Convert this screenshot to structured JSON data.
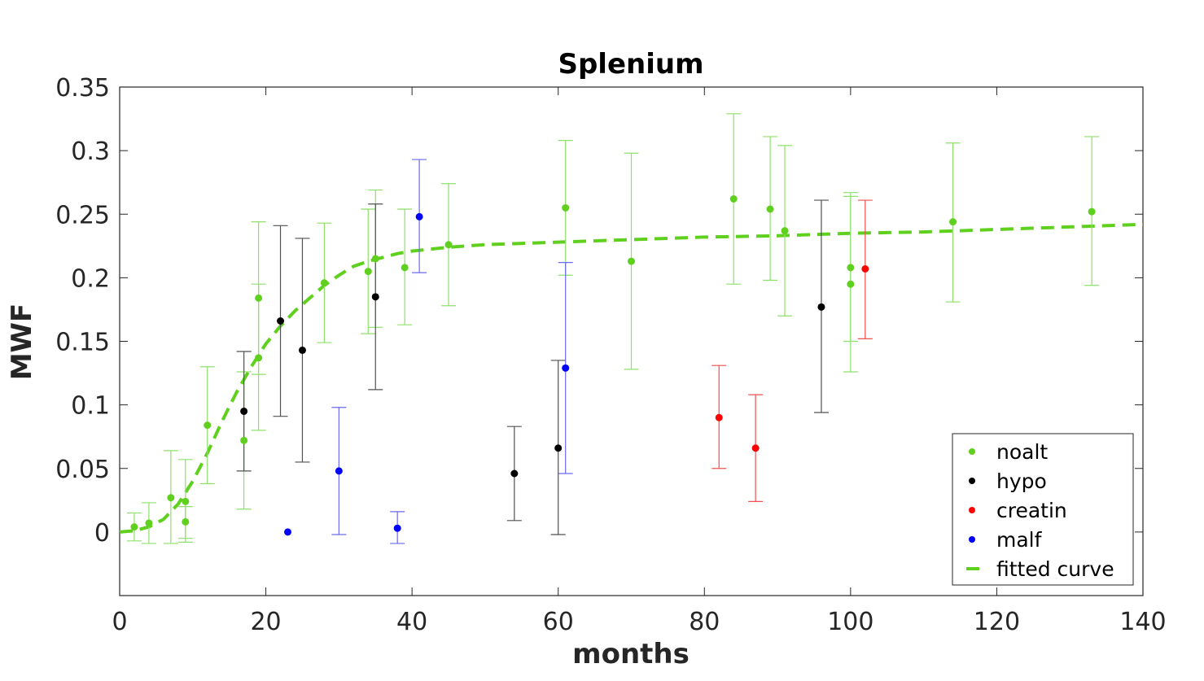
{
  "chart_data": {
    "type": "scatter",
    "title": "Splenium",
    "xlabel": "months",
    "ylabel": "MWF",
    "xlim": [
      0,
      140
    ],
    "ylim": [
      -0.05,
      0.35
    ],
    "xticks": [
      0,
      20,
      40,
      60,
      80,
      100,
      120,
      140
    ],
    "xtick_labels": [
      "0",
      "20",
      "40",
      "60",
      "80",
      "100",
      "120",
      "140"
    ],
    "yticks": [
      0,
      0.05,
      0.1,
      0.15,
      0.2,
      0.25,
      0.3,
      0.35
    ],
    "ytick_labels": [
      "0",
      "0.05",
      "0.1",
      "0.15",
      "0.2",
      "0.25",
      "0.3",
      "0.35"
    ],
    "legend_position": "bottom-right",
    "series": [
      {
        "name": "noalt",
        "color": "#5fd01e",
        "errcolor": "#8ee06a",
        "points": [
          {
            "x": 2,
            "y": 0.004,
            "lo": -0.007,
            "hi": 0.015
          },
          {
            "x": 4,
            "y": 0.007,
            "lo": -0.009,
            "hi": 0.023
          },
          {
            "x": 7,
            "y": 0.027,
            "lo": -0.009,
            "hi": 0.064
          },
          {
            "x": 9,
            "y": 0.024,
            "lo": -0.008,
            "hi": 0.057
          },
          {
            "x": 9,
            "y": 0.008,
            "lo": -0.005,
            "hi": 0.02
          },
          {
            "x": 12,
            "y": 0.084,
            "lo": 0.038,
            "hi": 0.13
          },
          {
            "x": 17,
            "y": 0.072,
            "lo": 0.018,
            "hi": 0.126
          },
          {
            "x": 19,
            "y": 0.184,
            "lo": 0.124,
            "hi": 0.244
          },
          {
            "x": 19,
            "y": 0.137,
            "lo": 0.08,
            "hi": 0.195
          },
          {
            "x": 28,
            "y": 0.196,
            "lo": 0.149,
            "hi": 0.243
          },
          {
            "x": 34,
            "y": 0.205,
            "lo": 0.156,
            "hi": 0.254
          },
          {
            "x": 35,
            "y": 0.215,
            "lo": 0.161,
            "hi": 0.269
          },
          {
            "x": 39,
            "y": 0.208,
            "lo": 0.163,
            "hi": 0.254
          },
          {
            "x": 45,
            "y": 0.226,
            "lo": 0.178,
            "hi": 0.274
          },
          {
            "x": 61,
            "y": 0.255,
            "lo": 0.202,
            "hi": 0.308
          },
          {
            "x": 70,
            "y": 0.213,
            "lo": 0.128,
            "hi": 0.298
          },
          {
            "x": 84,
            "y": 0.262,
            "lo": 0.195,
            "hi": 0.329
          },
          {
            "x": 89,
            "y": 0.254,
            "lo": 0.198,
            "hi": 0.311
          },
          {
            "x": 91,
            "y": 0.237,
            "lo": 0.17,
            "hi": 0.304
          },
          {
            "x": 100,
            "y": 0.208,
            "lo": 0.15,
            "hi": 0.267
          },
          {
            "x": 100,
            "y": 0.195,
            "lo": 0.126,
            "hi": 0.264
          },
          {
            "x": 114,
            "y": 0.244,
            "lo": 0.181,
            "hi": 0.306
          },
          {
            "x": 133,
            "y": 0.252,
            "lo": 0.194,
            "hi": 0.311
          }
        ]
      },
      {
        "name": "hypo",
        "color": "#000000",
        "errcolor": "#505050",
        "points": [
          {
            "x": 17,
            "y": 0.095,
            "lo": 0.048,
            "hi": 0.142
          },
          {
            "x": 22,
            "y": 0.166,
            "lo": 0.091,
            "hi": 0.241
          },
          {
            "x": 25,
            "y": 0.143,
            "lo": 0.055,
            "hi": 0.231
          },
          {
            "x": 35,
            "y": 0.185,
            "lo": 0.112,
            "hi": 0.258
          },
          {
            "x": 54,
            "y": 0.046,
            "lo": 0.009,
            "hi": 0.083
          },
          {
            "x": 60,
            "y": 0.066,
            "lo": -0.002,
            "hi": 0.135
          },
          {
            "x": 96,
            "y": 0.177,
            "lo": 0.094,
            "hi": 0.261
          }
        ]
      },
      {
        "name": "creatin",
        "color": "#ff0000",
        "errcolor": "#f05050",
        "points": [
          {
            "x": 82,
            "y": 0.09,
            "lo": 0.05,
            "hi": 0.131
          },
          {
            "x": 87,
            "y": 0.066,
            "lo": 0.024,
            "hi": 0.108
          },
          {
            "x": 102,
            "y": 0.207,
            "lo": 0.152,
            "hi": 0.261
          }
        ]
      },
      {
        "name": "malf",
        "color": "#0000ff",
        "errcolor": "#6a6af0",
        "points": [
          {
            "x": 23,
            "y": 0.0,
            "lo": null,
            "hi": null
          },
          {
            "x": 30,
            "y": 0.048,
            "lo": -0.002,
            "hi": 0.098
          },
          {
            "x": 38,
            "y": 0.003,
            "lo": -0.009,
            "hi": 0.016
          },
          {
            "x": 41,
            "y": 0.248,
            "lo": 0.204,
            "hi": 0.293
          },
          {
            "x": 61,
            "y": 0.129,
            "lo": 0.046,
            "hi": 0.212
          }
        ]
      }
    ],
    "fitted_curve": {
      "name": "fitted curve",
      "color": "#5fd01e",
      "style": "dashed",
      "x": [
        0,
        2,
        4,
        6,
        8,
        10,
        12,
        14,
        16,
        18,
        20,
        22,
        24,
        26,
        28,
        30,
        32,
        34,
        36,
        38,
        40,
        45,
        50,
        60,
        70,
        80,
        90,
        100,
        110,
        120,
        130,
        140
      ],
      "y": [
        0.0,
        0.001,
        0.004,
        0.01,
        0.022,
        0.04,
        0.062,
        0.087,
        0.11,
        0.13,
        0.148,
        0.162,
        0.174,
        0.184,
        0.194,
        0.202,
        0.209,
        0.213,
        0.216,
        0.219,
        0.221,
        0.224,
        0.226,
        0.228,
        0.23,
        0.232,
        0.233,
        0.235,
        0.236,
        0.238,
        0.24,
        0.242
      ]
    }
  }
}
